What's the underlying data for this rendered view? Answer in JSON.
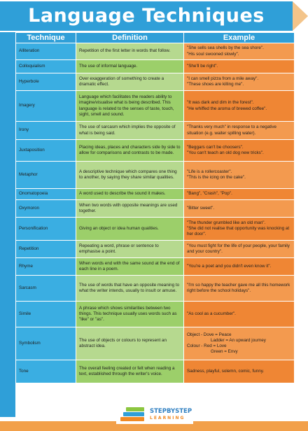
{
  "title": "Language Techniques",
  "headers": {
    "technique": "Technique",
    "definition": "Definition",
    "example": "Example"
  },
  "rows": [
    {
      "technique": "Alliteration",
      "definition": "Repetition of the first letter in words that follow.",
      "example": [
        "\"She sells sea shells by the sea shore\".",
        "\"His soul swooned slowly\"."
      ]
    },
    {
      "technique": "Colloquialism",
      "definition": "The use of informal language.",
      "example": [
        "\"She'll be right\"."
      ]
    },
    {
      "technique": "Hyperbole",
      "definition": "Over exaggeration of something to create a dramatic effect.",
      "example": [
        "\"I can smell pizza from a mile away\".",
        "\"These shoes are killing me\"."
      ]
    },
    {
      "technique": "Imagery",
      "definition": "Language which facilitates the readers ability to imagine/visualise what is being described. This language is related to the senses of taste, touch, sight, smell and sound.",
      "example": [
        "\"It was dark and dim in the forest\".",
        "\"He whiffed the aroma of brewed coffee\"."
      ]
    },
    {
      "technique": "Irony",
      "definition": "The use of sarcasm which implies the opposite of what is being said.",
      "example": [
        "\"Thanks very much\" in response to a negative situation (e.g. waiter spilling water)."
      ]
    },
    {
      "technique": "Juxtaposition",
      "definition": "Placing ideas, places and characters side by side to allow for comparisons and contrasts to be made.",
      "example": [
        "\"Beggars can't be choosers\".",
        "\"You can't teach an old dog new tricks\"."
      ]
    },
    {
      "technique": "Metaphor",
      "definition": "A descriptive technique which compares one thing to another, by saying they share similar qualities.",
      "example": [
        "\"Life is a rollercoaster\".",
        "\"This is the icing on the cake\"."
      ]
    },
    {
      "technique": "Onomatopoeia",
      "definition": "A word used to describe the sound it makes.",
      "example": [
        "\"Bang\", \"Crash\", \"Pop\"."
      ]
    },
    {
      "technique": "Oxymoron",
      "definition": "When two words with opposite meanings are used together.",
      "example": [
        "\"Bitter sweet\"."
      ]
    },
    {
      "technique": "Personification",
      "definition": "Giving an object or idea human qualities.",
      "example": [
        "\"The thunder grumbled like an old man\".",
        "\"She did not realise that opportunity was knocking at her door\"."
      ]
    },
    {
      "technique": "Repetition",
      "definition": "Repeating a word, phrase or sentence to emphasise a point.",
      "example": [
        "\"You must fight for the life of your people, your family and your country\"."
      ]
    },
    {
      "technique": "Rhyme",
      "definition": "When words end with the same sound at the end of each line in a poem.",
      "example": [
        "\"You're a poet and you didn't even know it\"."
      ]
    },
    {
      "technique": "Sarcasm",
      "definition": "The use of words that have an opposite meaning to what the writer intends, usually to insult or amuse.",
      "example": [
        "\"I'm so happy the teacher gave me all this homework right before the school holidays\"."
      ]
    },
    {
      "technique": "Simile",
      "definition": "A phrase which shows similarities between two things. This technique usually uses words such as \"like\" or \"as\".",
      "example": [
        "\"As cool as a cucumber\"."
      ]
    },
    {
      "technique": "Symbolism",
      "definition": "The use of objects or colours to represent an abstract idea.",
      "example": [
        "Object - Dove = Peace",
        "Ladder = An upward journey",
        "Colour - Red = Love",
        "Green = Envy"
      ]
    },
    {
      "technique": "Tone",
      "definition": "The overall feeling created or felt when reading a text, established through the writer's voice.",
      "example": [
        "Sadness, playful, solemn, comic, funny."
      ]
    }
  ],
  "logo": {
    "line1": "STEPBYSTEP",
    "line2": "LEARNING"
  },
  "colors": {
    "banner": "#2f9fd8",
    "technique_cell": "#3aaee2",
    "definition_cell": "#9ccf6a",
    "example_cell": "#ef8634",
    "footer": "#f2a04a"
  }
}
